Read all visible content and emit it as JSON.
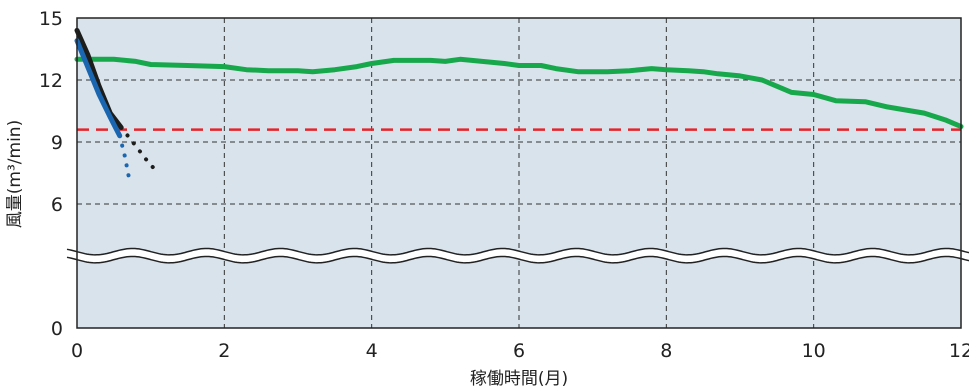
{
  "chart_data": {
    "type": "line",
    "xlabel": "稼働時間(月)",
    "ylabel": "風量(m³/min)",
    "xlim": [
      0,
      12
    ],
    "ylim": [
      0,
      15
    ],
    "x_ticks": [
      0,
      2,
      4,
      6,
      8,
      10,
      12
    ],
    "x_tick_labels": [
      "0",
      "2",
      "4",
      "6",
      "8",
      "10",
      "12"
    ],
    "y_ticks": [
      0,
      6,
      9,
      12,
      15
    ],
    "y_tick_labels": [
      "0",
      "6",
      "9",
      "12",
      "15"
    ],
    "axis_break": {
      "between": [
        0,
        6
      ],
      "at": 3.5
    },
    "grid": true,
    "background_color": "#d9e3ec",
    "threshold": {
      "value": 9.6,
      "color": "#e8242b"
    },
    "series": [
      {
        "color": "#17a84b",
        "style": "solid",
        "points": [
          [
            0,
            13.0
          ],
          [
            0.5,
            13.0
          ],
          [
            0.8,
            12.9
          ],
          [
            1.0,
            12.75
          ],
          [
            1.5,
            12.7
          ],
          [
            2.0,
            12.65
          ],
          [
            2.3,
            12.5
          ],
          [
            2.6,
            12.45
          ],
          [
            3.0,
            12.45
          ],
          [
            3.2,
            12.4
          ],
          [
            3.5,
            12.5
          ],
          [
            3.8,
            12.65
          ],
          [
            4.0,
            12.8
          ],
          [
            4.3,
            12.95
          ],
          [
            4.8,
            12.95
          ],
          [
            5.0,
            12.9
          ],
          [
            5.2,
            13.0
          ],
          [
            5.5,
            12.9
          ],
          [
            5.8,
            12.8
          ],
          [
            6.0,
            12.7
          ],
          [
            6.3,
            12.7
          ],
          [
            6.5,
            12.55
          ],
          [
            6.8,
            12.4
          ],
          [
            7.2,
            12.4
          ],
          [
            7.5,
            12.45
          ],
          [
            7.8,
            12.55
          ],
          [
            8.0,
            12.5
          ],
          [
            8.3,
            12.45
          ],
          [
            8.5,
            12.4
          ],
          [
            8.7,
            12.3
          ],
          [
            9.0,
            12.2
          ],
          [
            9.3,
            12.0
          ],
          [
            9.5,
            11.7
          ],
          [
            9.7,
            11.4
          ],
          [
            10.0,
            11.3
          ],
          [
            10.3,
            11.0
          ],
          [
            10.7,
            10.95
          ],
          [
            11.0,
            10.7
          ],
          [
            11.5,
            10.4
          ],
          [
            11.8,
            10.05
          ],
          [
            12.0,
            9.75
          ]
        ]
      },
      {
        "color": "#1d1d1b",
        "style": "solid",
        "points": [
          [
            0,
            14.4
          ],
          [
            0.15,
            13.2
          ],
          [
            0.3,
            11.7
          ],
          [
            0.45,
            10.4
          ],
          [
            0.6,
            9.7
          ]
        ]
      },
      {
        "color": "#1d1d1b",
        "style": "dotted",
        "points": [
          [
            0.6,
            9.7
          ],
          [
            0.8,
            8.8
          ],
          [
            0.95,
            8.1
          ],
          [
            1.1,
            7.5
          ]
        ]
      },
      {
        "color": "#1a66b0",
        "style": "solid",
        "points": [
          [
            0,
            13.9
          ],
          [
            0.15,
            12.6
          ],
          [
            0.3,
            11.3
          ],
          [
            0.45,
            10.2
          ],
          [
            0.58,
            9.3
          ]
        ]
      },
      {
        "color": "#1a66b0",
        "style": "dotted",
        "points": [
          [
            0.58,
            9.3
          ],
          [
            0.65,
            8.3
          ],
          [
            0.72,
            7.0
          ]
        ]
      }
    ]
  }
}
